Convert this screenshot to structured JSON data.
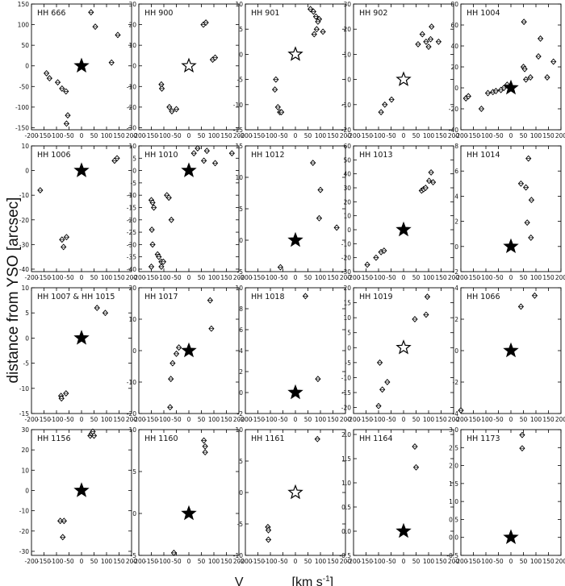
{
  "figure": {
    "ylabel": "distance from YSO [arcsec]",
    "xlabel_main": "V",
    "xlabel_units": "[km s",
    "xlabel_exp": "-1",
    "xlabel_close": "]"
  },
  "chart_data": [
    {
      "name": "HH 666",
      "type": "scatter",
      "xlim": [
        -200,
        200
      ],
      "ylim": [
        -155,
        150
      ],
      "xticks": [
        -200,
        -150,
        -100,
        -50,
        0,
        50,
        100,
        150,
        200
      ],
      "yticks": [
        -150,
        -100,
        -50,
        0,
        50,
        100,
        150
      ],
      "yformat": 0,
      "star": {
        "x": 0,
        "y": 0,
        "filled": true
      },
      "points": [
        [
          -140,
          -18
        ],
        [
          -128,
          -30
        ],
        [
          -95,
          -40
        ],
        [
          -78,
          -55
        ],
        [
          -62,
          -62
        ],
        [
          -55,
          -120
        ],
        [
          -60,
          -140
        ],
        [
          38,
          130
        ],
        [
          55,
          95
        ],
        [
          120,
          8
        ],
        [
          145,
          75
        ]
      ]
    },
    {
      "name": "HH 900",
      "type": "scatter",
      "xlim": [
        -200,
        200
      ],
      "ylim": [
        -31,
        30
      ],
      "xticks": [
        -200,
        -150,
        -100,
        -50,
        0,
        50,
        100,
        150,
        200
      ],
      "yticks": [
        -30,
        -20,
        -10,
        0,
        10,
        20,
        30
      ],
      "yformat": 0,
      "star": {
        "x": 0,
        "y": 0,
        "filled": false
      },
      "points": [
        [
          -110,
          -9
        ],
        [
          -108,
          -11
        ],
        [
          -78,
          -20
        ],
        [
          -68,
          -22
        ],
        [
          -50,
          -21
        ],
        [
          58,
          20
        ],
        [
          68,
          21
        ],
        [
          95,
          3
        ],
        [
          105,
          4
        ]
      ]
    },
    {
      "name": "HH 901",
      "type": "scatter",
      "xlim": [
        -200,
        200
      ],
      "ylim": [
        -15,
        10
      ],
      "xticks": [
        -200,
        -150,
        -100,
        -50,
        0,
        50,
        100,
        150,
        200
      ],
      "yticks": [
        -15,
        -10,
        -5,
        0,
        5,
        10
      ],
      "yformat": 0,
      "star": {
        "x": 0,
        "y": 0,
        "filled": false
      },
      "points": [
        [
          -78,
          -5
        ],
        [
          -82,
          -7
        ],
        [
          -70,
          -10.5
        ],
        [
          -62,
          -11.5
        ],
        [
          -56,
          -11.5
        ],
        [
          60,
          9
        ],
        [
          72,
          8.5
        ],
        [
          82,
          7.5
        ],
        [
          95,
          7
        ],
        [
          90,
          6.5
        ],
        [
          85,
          5
        ],
        [
          75,
          4
        ],
        [
          110,
          4.5
        ]
      ]
    },
    {
      "name": "HH 902",
      "type": "scatter",
      "xlim": [
        -200,
        200
      ],
      "ylim": [
        -20,
        30
      ],
      "xticks": [
        -200,
        -150,
        -100,
        -50,
        0,
        50,
        100,
        150,
        200
      ],
      "yticks": [
        -20,
        -10,
        0,
        10,
        20,
        30
      ],
      "yformat": 0,
      "star": {
        "x": 0,
        "y": 0,
        "filled": false
      },
      "points": [
        [
          -90,
          -13
        ],
        [
          -75,
          -10
        ],
        [
          -48,
          -8
        ],
        [
          58,
          14
        ],
        [
          75,
          18
        ],
        [
          90,
          15
        ],
        [
          100,
          13
        ],
        [
          112,
          21
        ],
        [
          140,
          15
        ],
        [
          108,
          16
        ]
      ]
    },
    {
      "name": "HH 1004",
      "type": "scatter",
      "xlim": [
        -200,
        200
      ],
      "ylim": [
        -40,
        80
      ],
      "xticks": [
        -200,
        -150,
        -100,
        -50,
        0,
        50,
        100,
        150,
        200
      ],
      "yticks": [
        -40,
        -20,
        0,
        20,
        40,
        60,
        80
      ],
      "yformat": 0,
      "star": {
        "x": 0,
        "y": 0,
        "filled": true
      },
      "points": [
        [
          -180,
          -10
        ],
        [
          -170,
          -8
        ],
        [
          -118,
          -20
        ],
        [
          -92,
          -5
        ],
        [
          -72,
          -4
        ],
        [
          -60,
          -3
        ],
        [
          -40,
          -2
        ],
        [
          -28,
          0
        ],
        [
          -15,
          3
        ],
        [
          50,
          20
        ],
        [
          55,
          18
        ],
        [
          60,
          8
        ],
        [
          52,
          63
        ],
        [
          78,
          10
        ],
        [
          110,
          30
        ],
        [
          118,
          47
        ],
        [
          145,
          10
        ],
        [
          170,
          25
        ]
      ]
    },
    {
      "name": "HH 1006",
      "type": "scatter",
      "xlim": [
        -200,
        200
      ],
      "ylim": [
        -41,
        10
      ],
      "xticks": [
        -200,
        -150,
        -100,
        -50,
        0,
        50,
        100,
        150,
        200
      ],
      "yticks": [
        -40,
        -30,
        -20,
        -10,
        0,
        10
      ],
      "yformat": 0,
      "star": {
        "x": 0,
        "y": 0,
        "filled": true
      },
      "points": [
        [
          -165,
          -8
        ],
        [
          -78,
          -28
        ],
        [
          -60,
          -27
        ],
        [
          -72,
          -31
        ],
        [
          132,
          4
        ],
        [
          142,
          5
        ]
      ]
    },
    {
      "name": "HH 1010",
      "type": "scatter",
      "xlim": [
        -200,
        200
      ],
      "ylim": [
        -41,
        10
      ],
      "xticks": [
        -200,
        -150,
        -100,
        -50,
        0,
        50,
        100,
        150,
        200
      ],
      "yticks": [
        -40,
        -35,
        -30,
        -25,
        -20,
        -15,
        -10,
        -5,
        0,
        5,
        10
      ],
      "yformat": 0,
      "star": {
        "x": 0,
        "y": 0,
        "filled": true
      },
      "points": [
        [
          -150,
          -12
        ],
        [
          -145,
          -13
        ],
        [
          -140,
          -15
        ],
        [
          -148,
          -24
        ],
        [
          -145,
          -30
        ],
        [
          -125,
          -34
        ],
        [
          -120,
          -35
        ],
        [
          -110,
          -37
        ],
        [
          -102,
          -37
        ],
        [
          -110,
          -39
        ],
        [
          -150,
          -39
        ],
        [
          -88,
          -10
        ],
        [
          -80,
          -11
        ],
        [
          -70,
          -20
        ],
        [
          20,
          7
        ],
        [
          35,
          9
        ],
        [
          60,
          4
        ],
        [
          72,
          8
        ],
        [
          105,
          3
        ],
        [
          172,
          7
        ]
      ]
    },
    {
      "name": "HH 1012",
      "type": "scatter",
      "xlim": [
        -200,
        200
      ],
      "ylim": [
        -5,
        15
      ],
      "xticks": [
        -200,
        -150,
        -100,
        -50,
        0,
        50,
        100,
        150,
        200
      ],
      "yticks": [
        -5,
        0,
        5,
        10,
        15
      ],
      "yformat": 0,
      "star": {
        "x": 0,
        "y": 0,
        "filled": true
      },
      "points": [
        [
          -60,
          -4.3
        ],
        [
          70,
          12.3
        ],
        [
          95,
          3.5
        ],
        [
          100,
          8
        ],
        [
          165,
          2
        ]
      ]
    },
    {
      "name": "HH 1013",
      "type": "scatter",
      "xlim": [
        -200,
        200
      ],
      "ylim": [
        -30,
        60
      ],
      "xticks": [
        -200,
        -150,
        -100,
        -50,
        0,
        50,
        100,
        150,
        200
      ],
      "yticks": [
        -30,
        -20,
        -10,
        0,
        10,
        20,
        30,
        40,
        50,
        60
      ],
      "yformat": 0,
      "star": {
        "x": 0,
        "y": 0,
        "filled": true
      },
      "points": [
        [
          -145,
          -25
        ],
        [
          -110,
          -20
        ],
        [
          -90,
          -16
        ],
        [
          -78,
          -15
        ],
        [
          72,
          28
        ],
        [
          80,
          29
        ],
        [
          88,
          30
        ],
        [
          102,
          35
        ],
        [
          110,
          41
        ],
        [
          118,
          34
        ]
      ]
    },
    {
      "name": "HH 1014",
      "type": "scatter",
      "xlim": [
        -200,
        200
      ],
      "ylim": [
        -2,
        8
      ],
      "xticks": [
        -200,
        -150,
        -100,
        -50,
        0,
        50,
        100,
        150,
        200
      ],
      "yticks": [
        -2,
        0,
        2,
        4,
        6,
        8
      ],
      "yformat": 0,
      "star": {
        "x": 0,
        "y": 0,
        "filled": true
      },
      "points": [
        [
          40,
          5
        ],
        [
          60,
          4.7
        ],
        [
          70,
          7
        ],
        [
          82,
          3.7
        ],
        [
          65,
          1.9
        ],
        [
          80,
          0.7
        ]
      ]
    },
    {
      "name": "HH 1007 & HH 1015",
      "type": "scatter",
      "xlim": [
        -200,
        200
      ],
      "ylim": [
        -15,
        10
      ],
      "xticks": [
        -200,
        -150,
        -100,
        -50,
        0,
        50,
        100,
        150,
        200
      ],
      "yticks": [
        -15,
        -10,
        -5,
        0,
        5,
        10
      ],
      "yformat": 0,
      "star": {
        "x": 0,
        "y": 0,
        "filled": true
      },
      "points": [
        [
          -82,
          -11.5
        ],
        [
          -80,
          -12
        ],
        [
          -62,
          -11
        ],
        [
          62,
          6
        ],
        [
          95,
          5
        ]
      ]
    },
    {
      "name": "HH 1017",
      "type": "scatter",
      "xlim": [
        -200,
        200
      ],
      "ylim": [
        -20,
        20
      ],
      "xticks": [
        -200,
        -150,
        -100,
        -50,
        0,
        50,
        100,
        150,
        200
      ],
      "yticks": [
        -20,
        -10,
        0,
        10,
        20
      ],
      "yformat": 0,
      "star": {
        "x": 0,
        "y": 0,
        "filled": true
      },
      "points": [
        [
          -50,
          -1
        ],
        [
          -65,
          -4
        ],
        [
          -72,
          -9
        ],
        [
          -75,
          -18
        ],
        [
          -40,
          1
        ],
        [
          85,
          16
        ],
        [
          90,
          7
        ]
      ]
    },
    {
      "name": "HH 1018",
      "type": "scatter",
      "xlim": [
        -200,
        200
      ],
      "ylim": [
        -2,
        10
      ],
      "xticks": [
        -200,
        -150,
        -100,
        -50,
        0,
        50,
        100,
        150,
        200
      ],
      "yticks": [
        -2,
        0,
        2,
        4,
        6,
        8,
        10
      ],
      "yformat": 0,
      "star": {
        "x": 0,
        "y": 0,
        "filled": true
      },
      "points": [
        [
          40,
          9.2
        ],
        [
          90,
          1.3
        ]
      ]
    },
    {
      "name": "HH 1019",
      "type": "scatter",
      "xlim": [
        -200,
        200
      ],
      "ylim": [
        -22,
        20
      ],
      "xticks": [
        -200,
        -150,
        -100,
        -50,
        0,
        50,
        100,
        150,
        200
      ],
      "yticks": [
        -20,
        -15,
        -10,
        -5,
        0,
        5,
        10,
        15,
        20
      ],
      "yformat": 0,
      "star": {
        "x": 0,
        "y": 0,
        "filled": false
      },
      "points": [
        [
          -100,
          -19.5
        ],
        [
          -85,
          -14
        ],
        [
          -65,
          -11.5
        ],
        [
          -95,
          -5
        ],
        [
          45,
          9.5
        ],
        [
          90,
          11
        ],
        [
          95,
          17
        ]
      ]
    },
    {
      "name": "HH 1066",
      "type": "scatter",
      "xlim": [
        -200,
        200
      ],
      "ylim": [
        -4,
        4
      ],
      "xticks": [
        -200,
        -150,
        -100,
        -50,
        0,
        50,
        100,
        150,
        200
      ],
      "yticks": [
        -4,
        -2,
        0,
        2,
        4
      ],
      "yformat": 0,
      "star": {
        "x": 0,
        "y": 0,
        "filled": true
      },
      "points": [
        [
          -200,
          -3.8
        ],
        [
          40,
          2.8
        ],
        [
          95,
          3.5
        ]
      ]
    },
    {
      "name": "HH 1156",
      "type": "scatter",
      "xlim": [
        -200,
        200
      ],
      "ylim": [
        -32,
        30
      ],
      "xticks": [
        -200,
        -150,
        -100,
        -50,
        0,
        50,
        100,
        150,
        200
      ],
      "yticks": [
        -30,
        -20,
        -10,
        0,
        10,
        20,
        30
      ],
      "yformat": 0,
      "star": {
        "x": 0,
        "y": 0,
        "filled": true
      },
      "points": [
        [
          -85,
          -15
        ],
        [
          -70,
          -15
        ],
        [
          -75,
          -23
        ],
        [
          35,
          27
        ],
        [
          40,
          28
        ],
        [
          50,
          27
        ],
        [
          45,
          29
        ]
      ]
    },
    {
      "name": "HH 1160",
      "type": "scatter",
      "xlim": [
        -200,
        200
      ],
      "ylim": [
        -5,
        10
      ],
      "xticks": [
        -200,
        -150,
        -100,
        -50,
        0,
        50,
        100,
        150,
        200
      ],
      "yticks": [
        -5,
        0,
        5,
        10
      ],
      "yformat": 0,
      "star": {
        "x": 0,
        "y": 0,
        "filled": true
      },
      "points": [
        [
          -60,
          -4.7
        ],
        [
          60,
          8.7
        ],
        [
          65,
          8
        ],
        [
          65,
          7.3
        ]
      ]
    },
    {
      "name": "HH 1161",
      "type": "scatter",
      "xlim": [
        -200,
        200
      ],
      "ylim": [
        -10,
        10
      ],
      "xticks": [
        -200,
        -150,
        -100,
        -50,
        0,
        50,
        100,
        150,
        200
      ],
      "yticks": [
        -10,
        -5,
        0,
        5,
        10
      ],
      "yformat": 0,
      "star": {
        "x": 0,
        "y": 0,
        "filled": false
      },
      "points": [
        [
          -110,
          -5.5
        ],
        [
          -108,
          -6
        ],
        [
          -108,
          -7.5
        ],
        [
          88,
          8.5
        ]
      ]
    },
    {
      "name": "HH 1164",
      "type": "scatter",
      "xlim": [
        -200,
        200
      ],
      "ylim": [
        -0.5,
        2.1
      ],
      "xticks": [
        -200,
        -150,
        -100,
        -50,
        0,
        50,
        100,
        150,
        200
      ],
      "yticks": [
        -0.5,
        0.0,
        0.5,
        1.0,
        1.5,
        2.0
      ],
      "yformat": 1,
      "star": {
        "x": 0,
        "y": 0,
        "filled": true
      },
      "points": [
        [
          45,
          1.75
        ],
        [
          50,
          1.32
        ]
      ]
    },
    {
      "name": "HH 1173",
      "type": "scatter",
      "xlim": [
        -200,
        200
      ],
      "ylim": [
        -0.5,
        3.0
      ],
      "xticks": [
        -200,
        -150,
        -100,
        -50,
        0,
        50,
        100,
        150,
        200
      ],
      "yticks": [
        -0.5,
        0.0,
        0.5,
        1.0,
        1.5,
        2.0,
        2.5,
        3.0
      ],
      "yformat": 1,
      "star": {
        "x": 0,
        "y": 0,
        "filled": true
      },
      "points": [
        [
          45,
          2.85
        ],
        [
          45,
          2.48
        ]
      ]
    }
  ]
}
